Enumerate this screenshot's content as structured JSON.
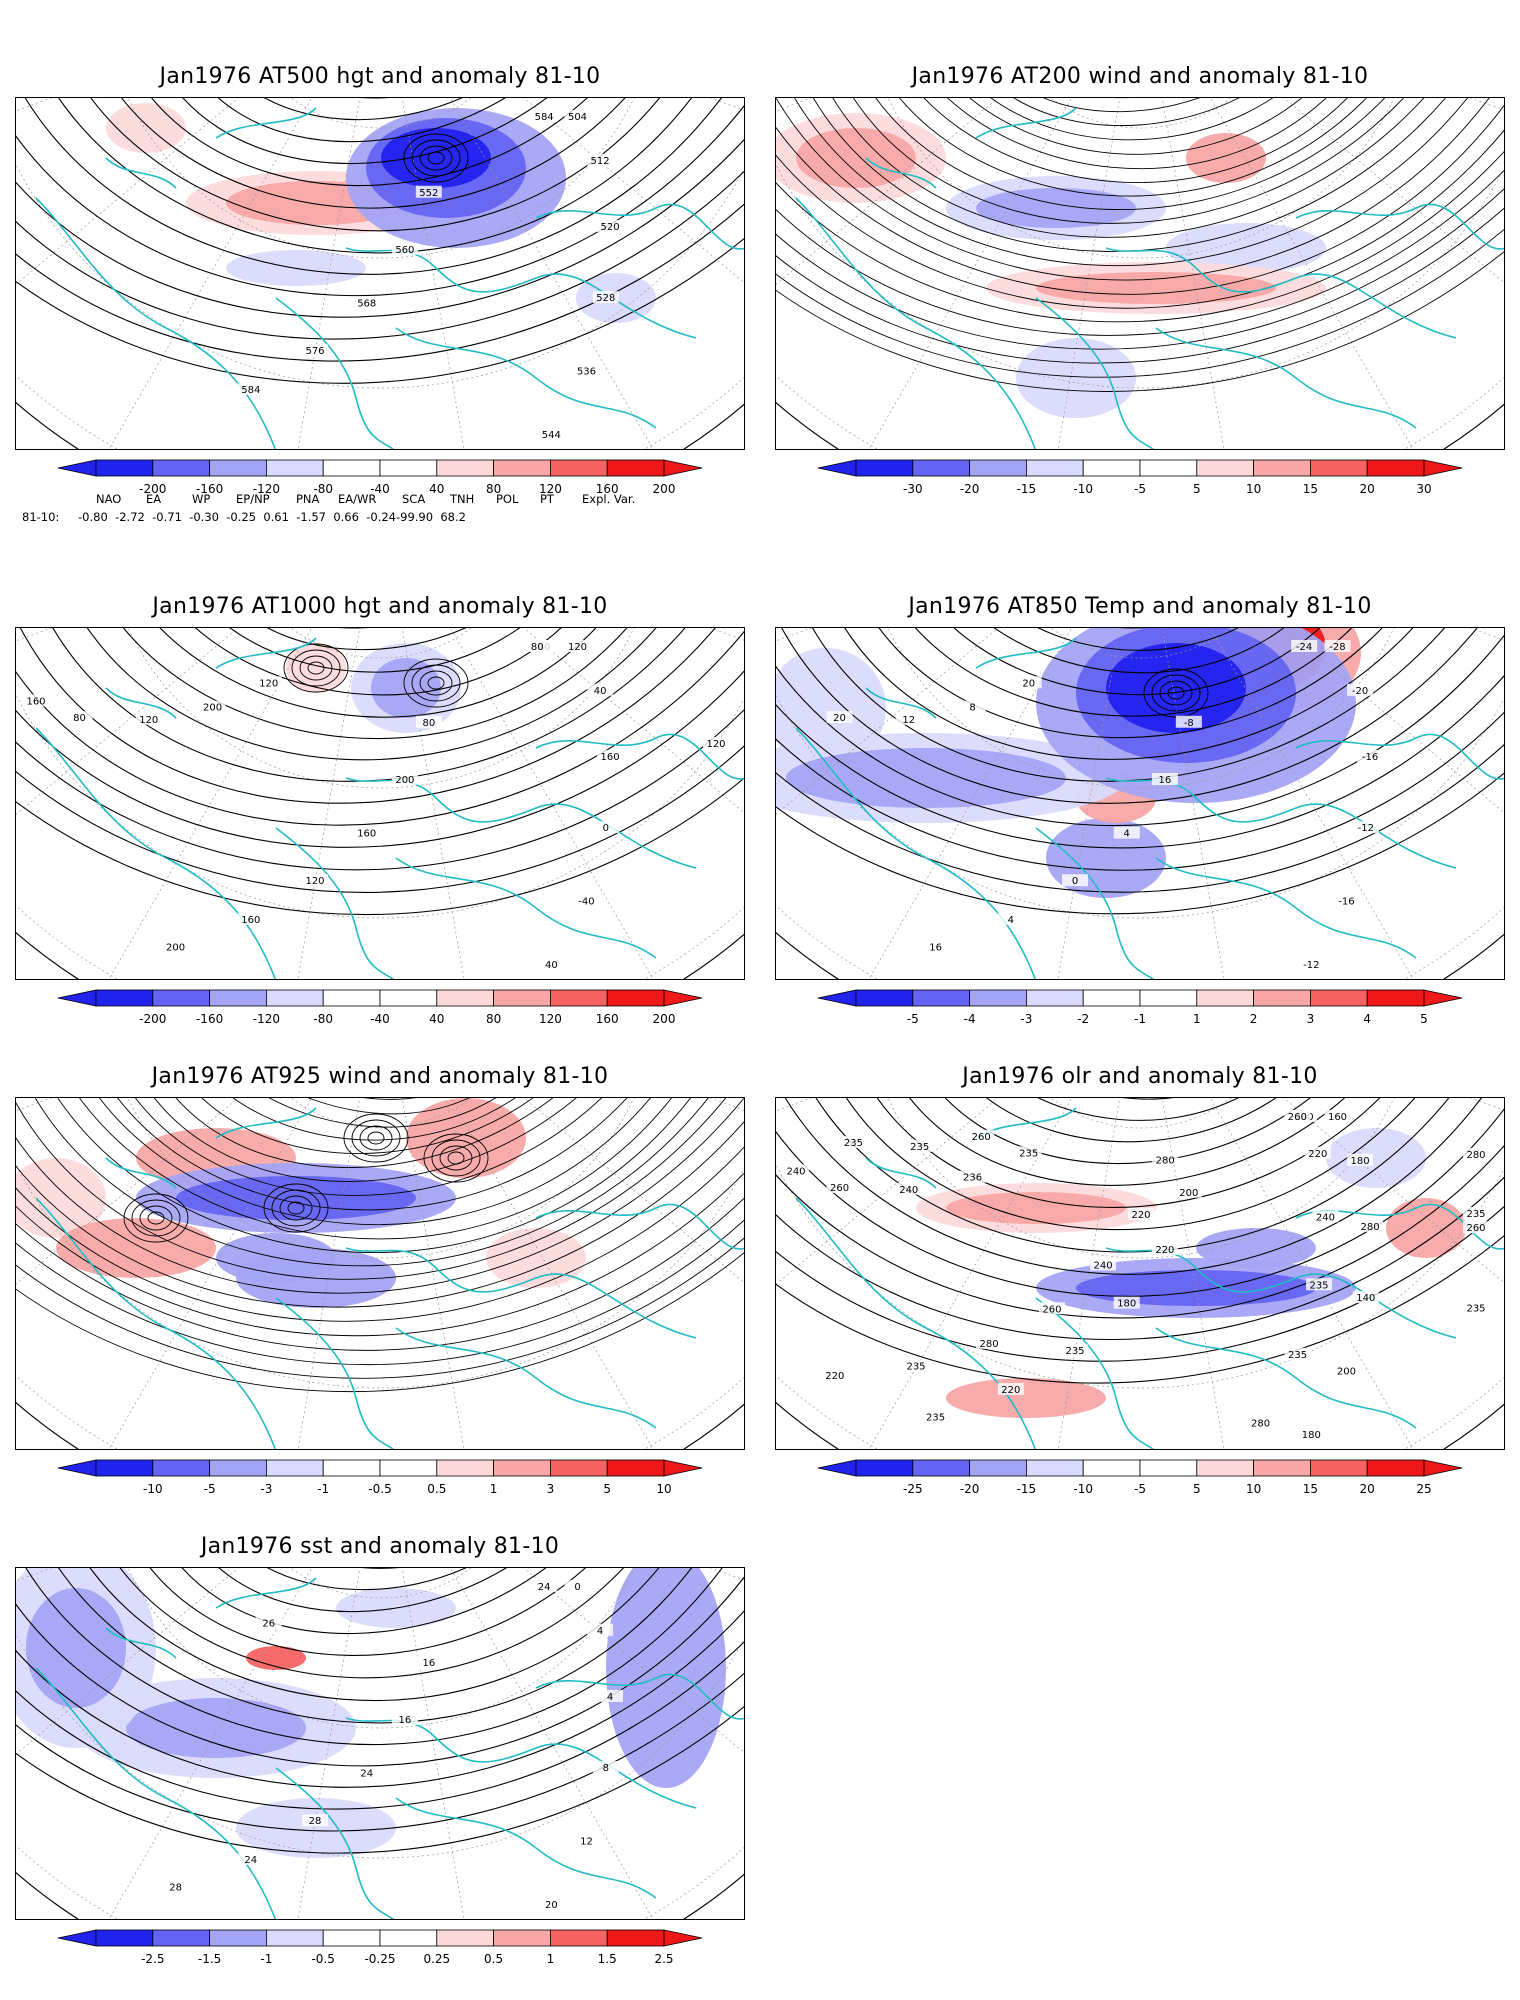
{
  "colors": {
    "coast": "#22bcc4",
    "contour": "#000000",
    "pos_strong": "#f01818",
    "pos_mid": "#f46262",
    "pos_light": "#f8a6a6",
    "pos_pale": "#fcdada",
    "neg_strong": "#2222ee",
    "neg_mid": "#6464f2",
    "neg_light": "#a4a4f6",
    "neg_pale": "#dadafc"
  },
  "panels": [
    {
      "id": "at500",
      "title": "Jan1976 AT500 hgt and anomaly 81-10",
      "colorbar": [
        "-200",
        "-160",
        "-120",
        "-80",
        "-40",
        "40",
        "80",
        "120",
        "160",
        "200"
      ],
      "contour_labels": [
        "584",
        "504",
        "512",
        "520",
        "528",
        "536",
        "544",
        "552",
        "560",
        "568",
        "576",
        "584"
      ]
    },
    {
      "id": "at200",
      "title": "Jan1976 AT200 wind and anomaly 81-10",
      "colorbar": [
        "-30",
        "-20",
        "-15",
        "-10",
        "-5",
        "5",
        "10",
        "15",
        "20",
        "30"
      ],
      "contour_labels": []
    },
    {
      "id": "at1000",
      "title": "Jan1976 AT1000 hgt and anomaly 81-10",
      "colorbar": [
        "-200",
        "-160",
        "-120",
        "-80",
        "-40",
        "40",
        "80",
        "120",
        "160",
        "200"
      ],
      "contour_labels": [
        "80",
        "120",
        "40",
        "160",
        "0",
        "-40",
        "40",
        "80",
        "200",
        "160",
        "120",
        "160",
        "200",
        "120",
        "200",
        "120",
        "80",
        "160",
        "120",
        "80"
      ]
    },
    {
      "id": "at850",
      "title": "Jan1976 AT850 Temp and anomaly 81-10",
      "colorbar": [
        "-5",
        "-4",
        "-3",
        "-2",
        "-1",
        "1",
        "2",
        "3",
        "4",
        "5"
      ],
      "contour_labels": [
        "-24",
        "-28",
        "-20",
        "-16",
        "-12",
        "-16",
        "-12",
        "-8",
        "16",
        "4",
        "0",
        "4",
        "16",
        "20",
        "8",
        "12",
        "20"
      ]
    },
    {
      "id": "at925",
      "title": "Jan1976 AT925 wind and anomaly 81-10",
      "colorbar": [
        "-10",
        "-5",
        "-3",
        "-1",
        "-0.5",
        "0.5",
        "1",
        "3",
        "5",
        "10"
      ],
      "contour_labels": []
    },
    {
      "id": "olr",
      "title": "Jan1976 olr and anomaly 81-10",
      "colorbar": [
        "-25",
        "-20",
        "-15",
        "-10",
        "-5",
        "5",
        "10",
        "15",
        "20",
        "25"
      ],
      "contour_labels": [
        "260",
        "160",
        "180",
        "280",
        "140",
        "200",
        "180",
        "200",
        "220",
        "180",
        "235",
        "220",
        "235",
        "235",
        "236",
        "240",
        "260",
        "240",
        "235",
        "260",
        "220",
        "240",
        "235",
        "235",
        "280",
        "280",
        "220",
        "240",
        "260",
        "280",
        "235",
        "220",
        "260",
        "235",
        "235",
        "280",
        "260",
        "235"
      ]
    },
    {
      "id": "sst",
      "title": "Jan1976 sst and anomaly 81-10",
      "colorbar": [
        "-2.5",
        "-1.5",
        "-1",
        "-0.5",
        "-0.25",
        "0.25",
        "0.5",
        "1",
        "1.5",
        "2.5"
      ],
      "contour_labels": [
        "24",
        "0",
        "4",
        "4",
        "8",
        "12",
        "20",
        "16",
        "16",
        "24",
        "28",
        "24",
        "28",
        "26"
      ]
    }
  ],
  "indices": {
    "headers": [
      "NAO",
      "EA",
      "WP",
      "EP/NP",
      "PNA",
      "EA/WR",
      "SCA",
      "TNH",
      "POL",
      "PT",
      "Expl. Var."
    ],
    "row_label": "81-10:",
    "values_text": "-0.80  -2.72  -0.71  -0.30  -0.25  0.61  -1.57  0.66  -0.24-99.90  68.2"
  }
}
